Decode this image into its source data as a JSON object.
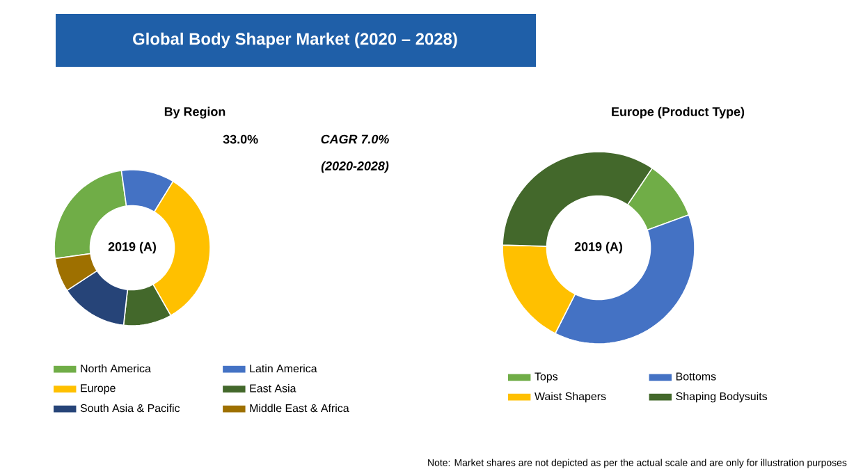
{
  "chart_data": [
    {
      "type": "donut",
      "title": "Global Body Shaper Market (2020 – 2028)",
      "subtitle": "By Region",
      "categories": [
        "North America",
        "Latin America",
        "Europe",
        "East Asia",
        "South Asia & Pacific",
        "Middle East & Africa"
      ],
      "values": [
        25,
        11,
        33,
        10,
        14,
        7
      ],
      "colors": [
        "#70ad47",
        "#4472c4",
        "#ffc000",
        "#43682b",
        "#264478",
        "#9e7000"
      ],
      "value_labels": [
        null,
        null,
        "33.0%",
        null,
        null,
        null
      ],
      "annotations": [
        "2019 (A)",
        "CAGR 7.0%",
        "(2020-2028)"
      ],
      "legend": "bottom"
    },
    {
      "type": "donut",
      "subtitle": "Europe (Product Type)",
      "categories": [
        "Tops",
        "Bottoms",
        "Waist Shapers",
        "Shaping Bodysuits"
      ],
      "values": [
        10,
        38,
        18,
        34
      ],
      "colors": [
        "#70ad47",
        "#4472c4",
        "#ffc000",
        "#43682b"
      ],
      "annotations": [
        "2019 (A)",
        "Note: Market shares are not depicted as per the actual scale and are only for illustration purposes"
      ],
      "legend": "bottom"
    }
  ]
}
